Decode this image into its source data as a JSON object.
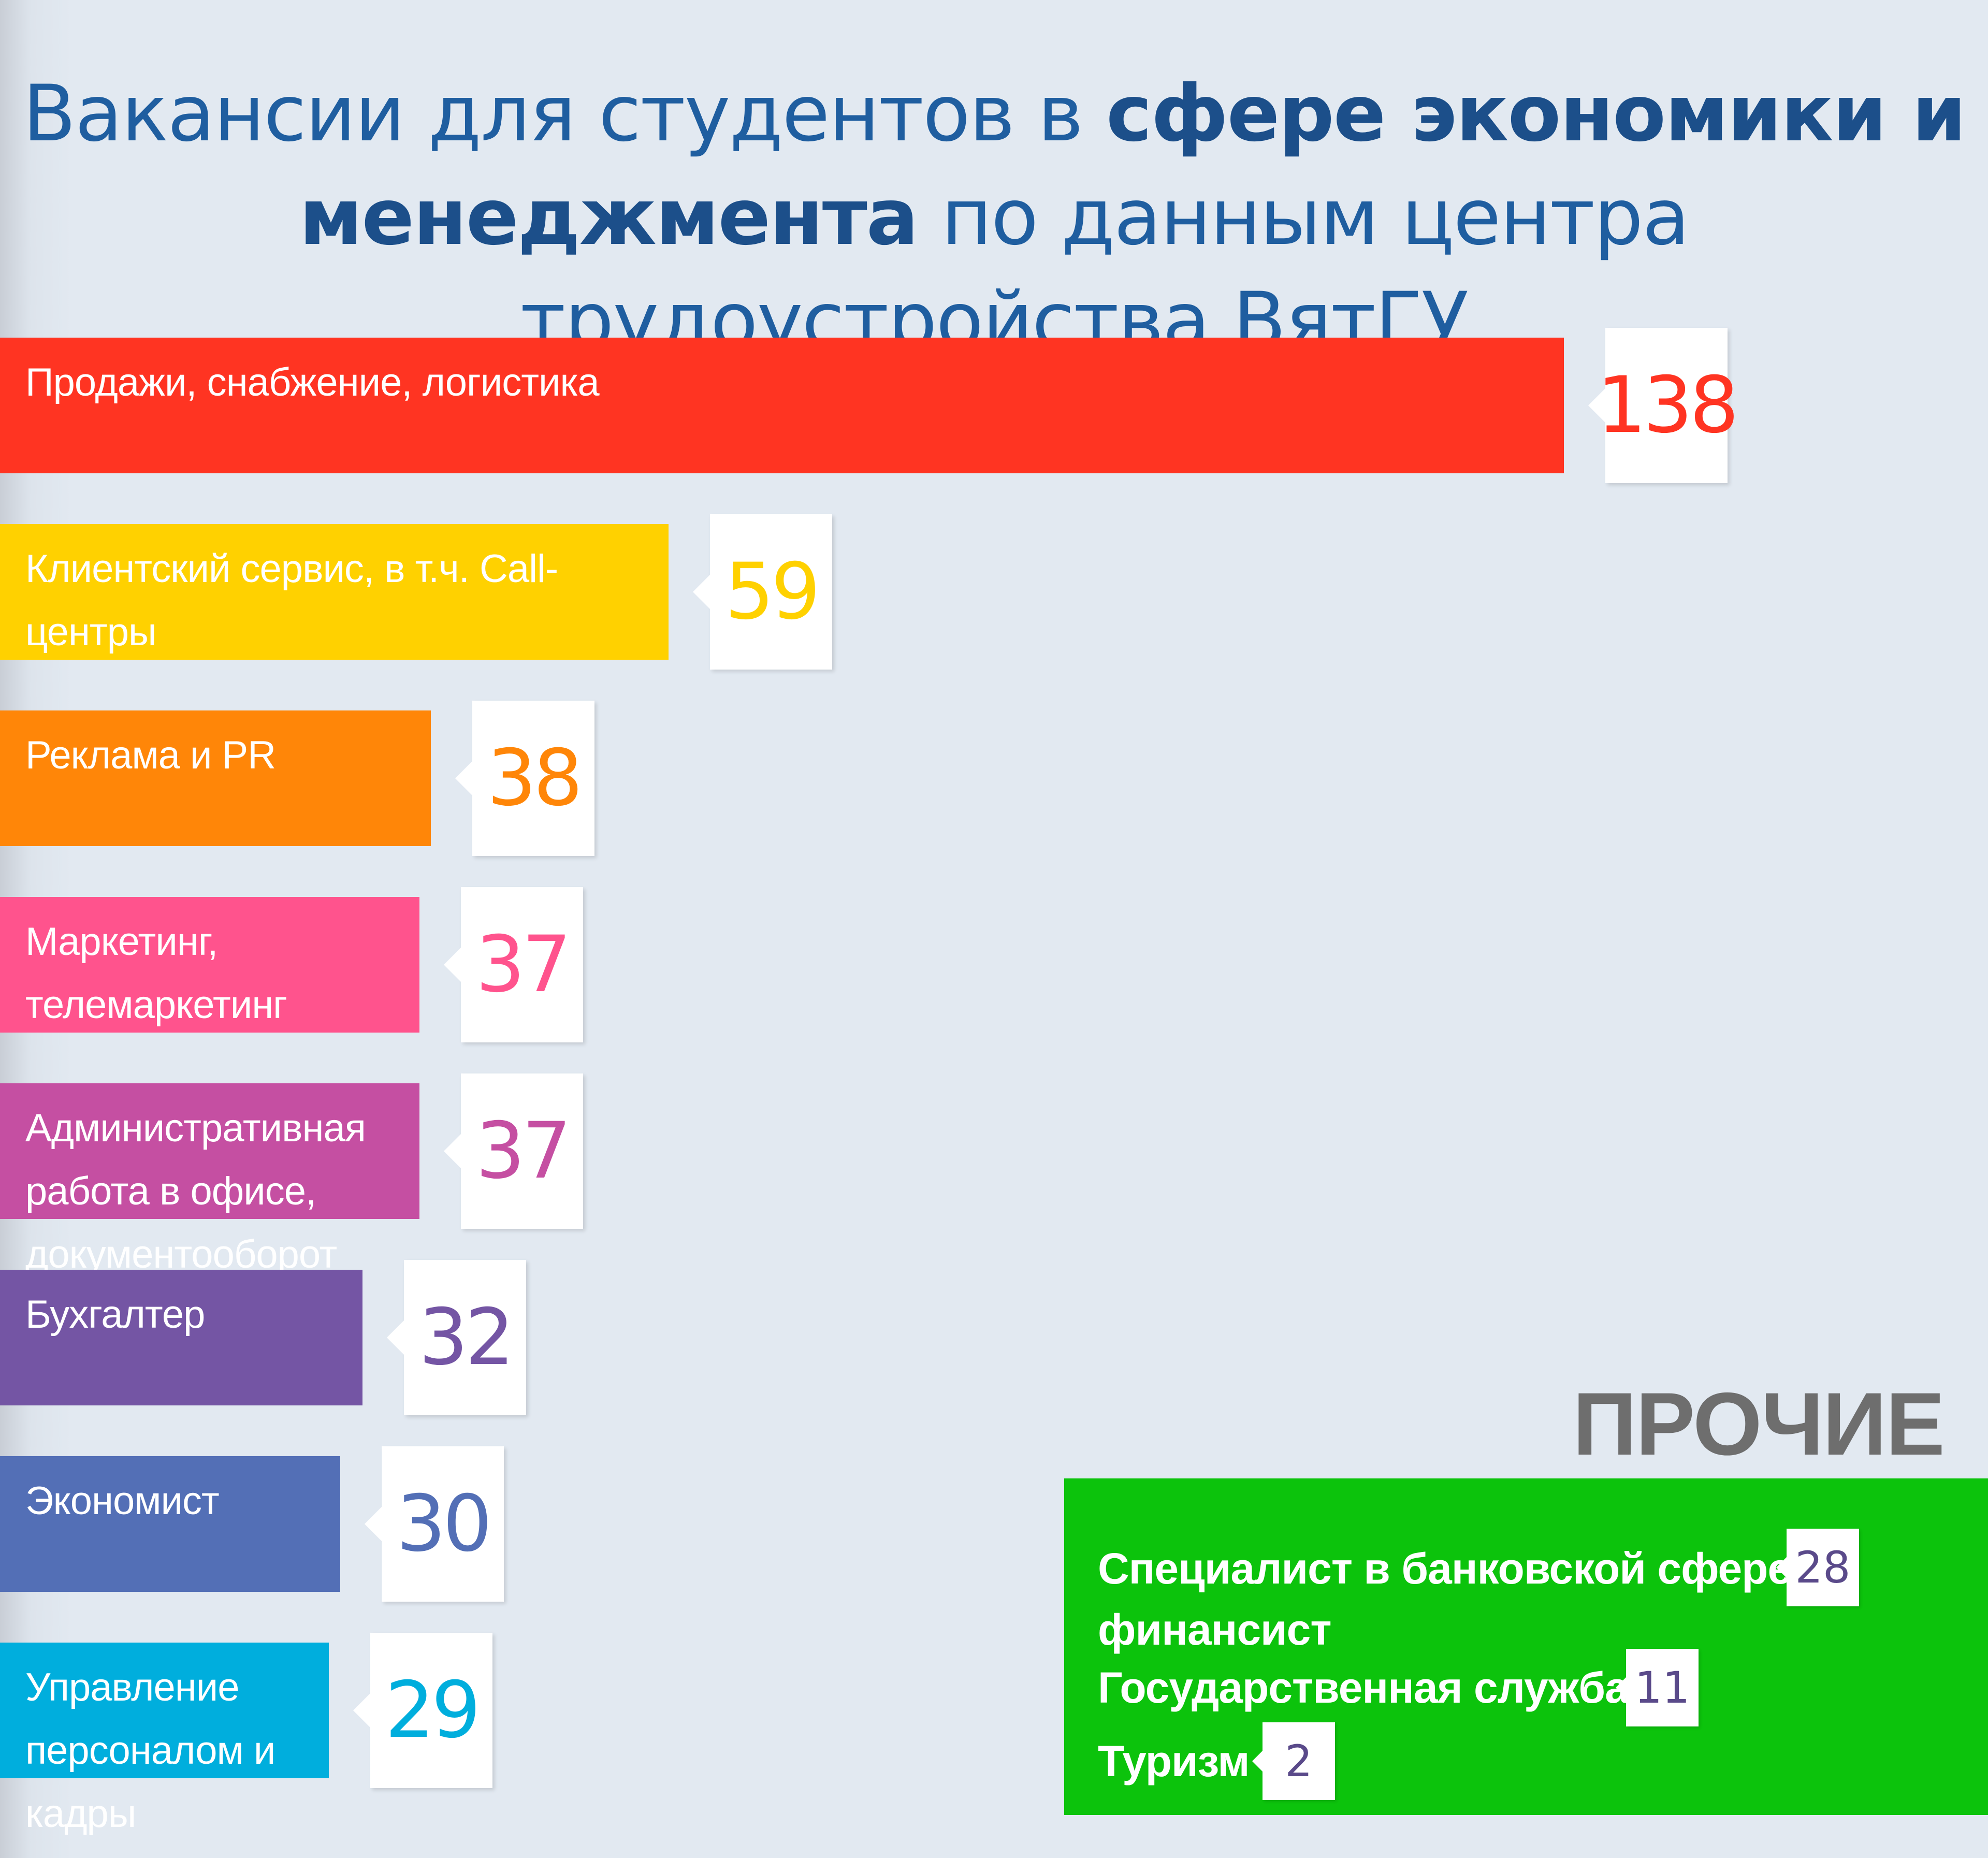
{
  "chart_data": {
    "type": "bar",
    "orientation": "horizontal",
    "title_parts": [
      {
        "text": "Вакансии для студентов в ",
        "bold": false
      },
      {
        "text": "сфере экономики и",
        "bold": true
      },
      {
        "text": "менеджмента",
        "bold": true
      },
      {
        "text": " по данным центра трудоустройства ВятГУ",
        "bold": false
      }
    ],
    "categories": [
      "Продажи, снабжение, логистика",
      "Клиентский сервис, в т.ч. Call-центры",
      "Реклама и PR",
      "Маркетинг, телемаркетинг",
      "Административная работа в офисе, документооборот",
      "Бухгалтер",
      "Экономист",
      "Управление персоналом и кадры"
    ],
    "values": [
      138,
      59,
      38,
      37,
      37,
      32,
      30,
      29
    ],
    "colors": [
      "#ff3422",
      "#ffd100",
      "#ff8608",
      "#ff538d",
      "#c54fa2",
      "#7455a4",
      "#536fb6",
      "#00aedd"
    ],
    "others": {
      "heading": "ПРОЧИЕ",
      "color": "#0cc30c",
      "items": [
        {
          "label": "Специалист в банковской сфере, финансист",
          "value": 28
        },
        {
          "label": "Государственная служба",
          "value": 11
        },
        {
          "label": "Туризм",
          "value": 2
        }
      ]
    }
  }
}
